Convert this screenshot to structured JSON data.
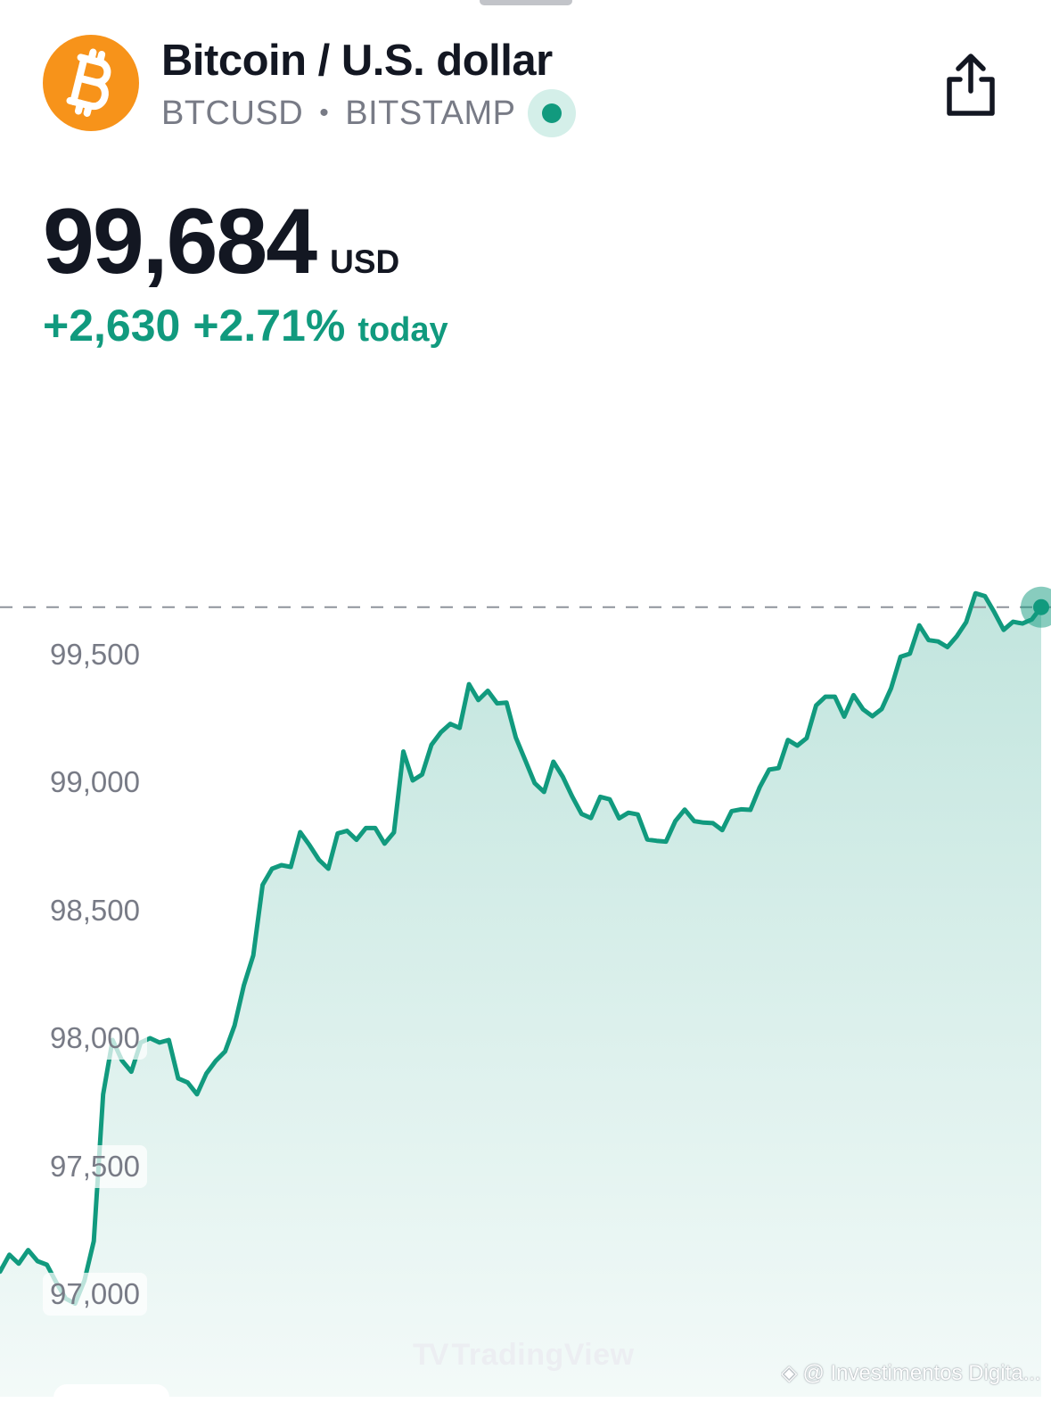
{
  "header": {
    "title": "Bitcoin / U.S. dollar",
    "symbol": "BTCUSD",
    "separator": "•",
    "exchange": "BITSTAMP",
    "logo_icon": "bitcoin-icon",
    "logo_color": "#f7931a",
    "live_status_color": "#119a7e",
    "share_icon": "share-icon"
  },
  "quote": {
    "price": "99,684",
    "currency": "USD",
    "change": "+2,630",
    "change_percent": "+2.71%",
    "period": "today",
    "up_color": "#119a7e"
  },
  "watermarks": {
    "brand": "TradingView",
    "source": "@ Investimentos Digita..."
  },
  "chart_data": {
    "type": "area",
    "ylabel": "",
    "xlabel": "",
    "yticks": [
      99500,
      99000,
      98500,
      98000,
      97500,
      97000
    ],
    "ytick_labels": [
      "99,500",
      "99,000",
      "98,500",
      "98,000",
      "97,500",
      "97,000"
    ],
    "ylim": [
      96880,
      99800
    ],
    "last_price_line": 99684,
    "line_color": "#119a7e",
    "fill_color": "#119a7e",
    "grid": false,
    "series": [
      {
        "values": [
          97088,
          97154,
          97119,
          97172,
          97129,
          97115,
          97046,
          96983,
          96963,
          97053,
          97207,
          97781,
          97993,
          97913,
          97869,
          97983,
          98000,
          97983,
          97993,
          97843,
          97827,
          97781,
          97862,
          97911,
          97948,
          98049,
          98207,
          98323,
          98599,
          98662,
          98676,
          98669,
          98805,
          98754,
          98697,
          98662,
          98800,
          98810,
          98775,
          98821,
          98821,
          98760,
          98804,
          99120,
          99007,
          99030,
          99146,
          99195,
          99228,
          99212,
          99383,
          99321,
          99357,
          99308,
          99311,
          99174,
          99085,
          98996,
          98962,
          99080,
          99021,
          98944,
          98876,
          98860,
          98943,
          98933,
          98859,
          98881,
          98874,
          98776,
          98771,
          98768,
          98848,
          98893,
          98848,
          98842,
          98840,
          98813,
          98887,
          98894,
          98892,
          98981,
          99049,
          99055,
          99165,
          99143,
          99172,
          99300,
          99334,
          99334,
          99256,
          99340,
          99285,
          99258,
          99286,
          99367,
          99490,
          99502,
          99613,
          99555,
          99550,
          99528,
          99570,
          99625,
          99738,
          99727,
          99664,
          99595,
          99627,
          99620,
          99636,
          99684
        ]
      }
    ]
  }
}
